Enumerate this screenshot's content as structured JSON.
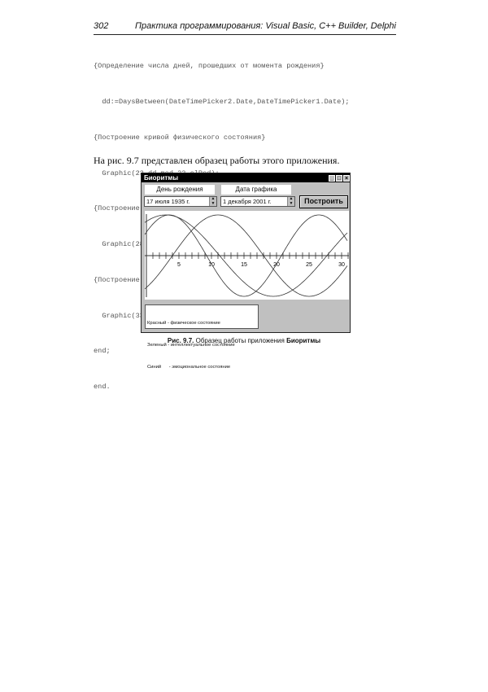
{
  "header": {
    "page_number": "302",
    "running_title": "Практика программирования: Visual Basic, C++ Builder, Delphi"
  },
  "code_lines": [
    "{Определение числа дней, прошедших от момента рождения}",
    "  dd:=DaysBetween(DateTimePicker2.Date,DateTimePicker1.Date);",
    "{Построение кривой физического состояния}",
    "  Graphic(23,dd mod 23,clRed);",
    "{Построение кривой интеллектуального состояния}",
    "  Graphic(28,dd mod 28,clGreen);",
    "{Построение кривой эмоционального состояния}",
    "  Graphic(33,dd mod 33,clBlue);",
    "end;",
    "end."
  ],
  "paragraph": "На рис. 9.7 представлен образец работы этого приложения.",
  "window": {
    "title": "Биоритмы",
    "birth_label": "День рождения",
    "birth_value": "17    июля    1935 г.",
    "chart_date_label": "Дата графика",
    "chart_date_value": "1  декабря  2001 г.",
    "build_button": "Построить",
    "axis_ticks": [
      "5",
      "10",
      "15",
      "20",
      "25",
      "30"
    ],
    "legend": [
      "Красный - физическое состояние",
      "Зеленый - интеллектуальное состояние",
      "Синий      - эмоциональное состояние"
    ]
  },
  "caption": {
    "label": "Рис. 9.7.",
    "text": " Образец работы приложения ",
    "app": "Биоритмы"
  }
}
